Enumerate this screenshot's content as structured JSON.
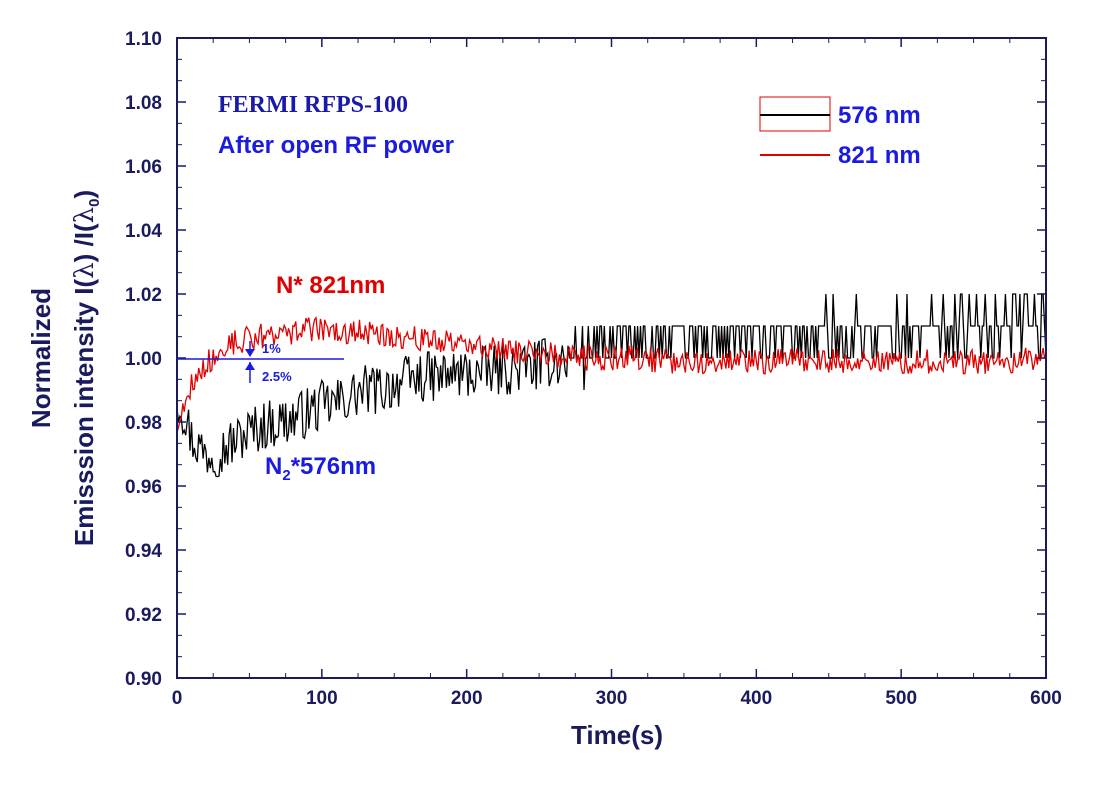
{
  "chart_data": {
    "type": "line",
    "xlabel": "Time(s)",
    "ylabel_line1": "Normalized",
    "ylabel_line2_prefix": "Emisssion intensity I(",
    "ylabel_line2_mid": ") /I(",
    "ylabel_line2_end": ")",
    "ylabel_lambda": "λ",
    "ylabel_sub0": "0",
    "xlim": [
      0,
      600
    ],
    "ylim": [
      0.9,
      1.1
    ],
    "xticks": [
      0,
      100,
      200,
      300,
      400,
      500,
      600
    ],
    "xtick_labels": [
      "0",
      "100",
      "200",
      "300",
      "400",
      "500",
      "600"
    ],
    "yticks": [
      0.9,
      0.92,
      0.94,
      0.96,
      0.98,
      1.0,
      1.02,
      1.04,
      1.06,
      1.08,
      1.1
    ],
    "ytick_labels": [
      "0.90",
      "0.92",
      "0.94",
      "0.96",
      "0.98",
      "1.00",
      "1.02",
      "1.04",
      "1.06",
      "1.08",
      "1.10"
    ],
    "grid": false,
    "legend_position": "top-right",
    "series": [
      {
        "name": "576 nm",
        "color": "#000000",
        "x": [
          0,
          5,
          10,
          20,
          30,
          40,
          50,
          60,
          70,
          80,
          90,
          100,
          110,
          120,
          130,
          140,
          150,
          160,
          170,
          180,
          190,
          200,
          220,
          240,
          260,
          280,
          300,
          320,
          340,
          360,
          380,
          400,
          420,
          440,
          460,
          480,
          500,
          520,
          540,
          560,
          580,
          600
        ],
        "y": [
          0.988,
          0.983,
          0.975,
          0.97,
          0.971,
          0.974,
          0.977,
          0.979,
          0.98,
          0.981,
          0.983,
          0.985,
          0.986,
          0.988,
          0.99,
          0.99,
          0.992,
          0.993,
          0.994,
          0.994,
          0.995,
          0.995,
          0.996,
          0.997,
          0.999,
          1.0,
          1.003,
          1.004,
          1.005,
          1.005,
          1.006,
          1.006,
          1.007,
          1.007,
          1.008,
          1.008,
          1.008,
          1.009,
          1.01,
          1.011,
          1.012,
          1.01
        ],
        "noise": 0.008
      },
      {
        "name": "821 nm",
        "color": "#e00000",
        "x": [
          0,
          5,
          10,
          20,
          30,
          40,
          50,
          60,
          70,
          80,
          90,
          100,
          110,
          120,
          130,
          140,
          150,
          160,
          170,
          180,
          190,
          200,
          220,
          240,
          260,
          280,
          300,
          320,
          340,
          360,
          380,
          400,
          420,
          440,
          460,
          480,
          500,
          520,
          540,
          560,
          580,
          600
        ],
        "y": [
          0.978,
          0.985,
          0.992,
          0.998,
          1.002,
          1.005,
          1.006,
          1.007,
          1.008,
          1.008,
          1.009,
          1.009,
          1.008,
          1.008,
          1.008,
          1.007,
          1.007,
          1.006,
          1.006,
          1.005,
          1.005,
          1.004,
          1.003,
          1.002,
          1.001,
          1.0,
          1.0,
          1.0,
          0.999,
          0.999,
          0.999,
          0.999,
          0.999,
          0.999,
          0.999,
          0.999,
          0.999,
          0.999,
          0.999,
          0.999,
          0.999,
          1.0
        ],
        "noise": 0.004
      }
    ],
    "annotations": {
      "title_line1": "FERMI RFPS-100",
      "title_line2": "After open RF power",
      "n_star_label": "N* 821nm",
      "n2_prefix": "N",
      "n2_sub": "2",
      "n2_suffix": "*576nm",
      "pct1": "1%",
      "pct2": "2.5%"
    },
    "colors": {
      "axis": "#1a1a5e",
      "annotation_blue": "#1a1ae0",
      "series_black": "#000000",
      "series_red": "#e00000"
    }
  }
}
